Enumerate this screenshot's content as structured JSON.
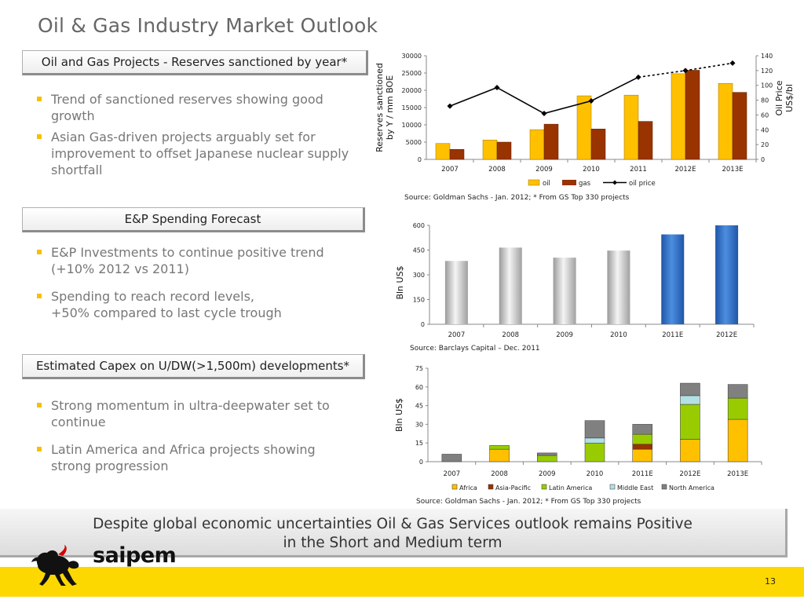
{
  "slide": {
    "title": "Oil & Gas Industry Market Outlook",
    "page_number": "13",
    "conclusion_line1": "Despite global economic uncertainties Oil & Gas Services outlook remains Positive",
    "conclusion_line2": "in the Short and Medium term",
    "logo_text": "saipem",
    "accent_color": "#fdd800"
  },
  "sections": [
    {
      "header": "Oil and Gas Projects - Reserves sanctioned by year*",
      "bullets": [
        "Trend of sanctioned reserves showing good growth",
        "Asian Gas-driven projects arguably set for improvement to offset Japanese nuclear supply shortfall"
      ]
    },
    {
      "header": "E&P Spending Forecast",
      "bullets": [
        "E&P Investments to continue positive trend (+10% 2012 vs 2011)",
        "Spending to reach record levels,",
        "+50% compared to last cycle trough"
      ]
    },
    {
      "header": "Estimated Capex on U/DW(>1,500m) developments*",
      "bullets": [
        "Strong momentum in ultra-deepwater set to continue",
        "Latin America and Africa projects showing strong progression"
      ]
    }
  ],
  "chart_data": [
    {
      "type": "bar",
      "categories": [
        "2007",
        "2008",
        "2009",
        "2010",
        "2011",
        "2012E",
        "2013E"
      ],
      "ylabel_line1": "Reserves sanctioned",
      "ylabel_line2": "by Y /  mm BOE",
      "y2label_line1": "Oil Price",
      "y2label_line2": "US$/bl",
      "ylim": [
        0,
        30000
      ],
      "yticks": [
        "0",
        "5000",
        "10000",
        "15000",
        "20000",
        "25000",
        "30000"
      ],
      "y2lim": [
        0,
        140
      ],
      "y2ticks": [
        "0",
        "20",
        "40",
        "60",
        "80",
        "100",
        "120",
        "140"
      ],
      "series": [
        {
          "name": "oil",
          "type": "bar",
          "color": "#ffc000",
          "values": [
            4600,
            5600,
            8600,
            18400,
            18600,
            24800,
            22000
          ]
        },
        {
          "name": "gas",
          "type": "bar",
          "color": "#993300",
          "values": [
            2900,
            5000,
            10200,
            8800,
            11000,
            25800,
            19400
          ]
        },
        {
          "name": "oil price",
          "type": "line",
          "axis": "secondary",
          "color": "#000000",
          "values": [
            72,
            97,
            62,
            79,
            111,
            120,
            130
          ],
          "dashed_from": "2011"
        }
      ],
      "legend": "bottom",
      "source": "Source: Goldman Sachs - Jan. 2012; * From GS Top 330 projects"
    },
    {
      "type": "bar",
      "categories": [
        "2007",
        "2008",
        "2009",
        "2010",
        "2011E",
        "2012E"
      ],
      "ylabel": "Bln US$",
      "ylim": [
        0,
        600
      ],
      "yticks": [
        "0",
        "150",
        "300",
        "450",
        "600"
      ],
      "series": [
        {
          "name": "",
          "values": [
            384,
            465,
            404,
            447,
            545,
            600
          ]
        }
      ],
      "bar_colors": [
        "#c8c8c8",
        "#c8c8c8",
        "#c8c8c8",
        "#c8c8c8",
        "#2e6fc4",
        "#2e6fc4"
      ],
      "source": "Source: Barclays Capital – Dec. 2011"
    },
    {
      "type": "bar",
      "stacked": true,
      "categories": [
        "2007",
        "2008",
        "2009",
        "2010",
        "2011E",
        "2012E",
        "2013E"
      ],
      "ylabel": "Bln US$",
      "ylim": [
        0,
        75
      ],
      "yticks": [
        "0",
        "15",
        "30",
        "45",
        "60",
        "75"
      ],
      "series": [
        {
          "name": "Africa",
          "color": "#ffc000",
          "values": [
            0,
            10,
            0,
            0,
            10,
            18,
            34
          ]
        },
        {
          "name": "Asia-Pacific",
          "color": "#993300",
          "values": [
            0,
            0,
            0,
            0,
            4,
            0,
            0
          ]
        },
        {
          "name": "Latin America",
          "color": "#99cc00",
          "values": [
            0,
            3,
            5,
            15,
            8,
            28,
            17
          ]
        },
        {
          "name": "Middle East",
          "color": "#b3e0e6",
          "values": [
            0,
            0,
            0,
            4,
            0,
            7,
            0
          ]
        },
        {
          "name": "North America",
          "color": "#808080",
          "values": [
            6,
            0,
            2,
            14,
            8,
            10,
            11
          ]
        }
      ],
      "legend": "bottom",
      "source": "Source: Goldman Sachs - Jan. 2012; * From GS Top 330 projects"
    }
  ]
}
